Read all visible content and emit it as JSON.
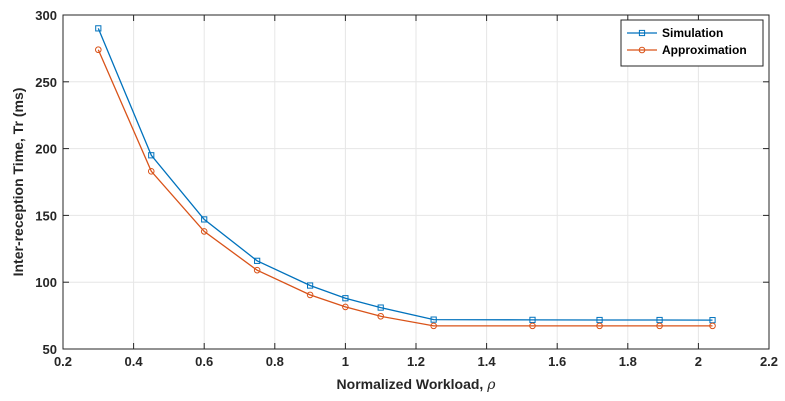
{
  "chart_data": {
    "type": "line",
    "title": "",
    "xlabel": "Normalized Workload, ",
    "xlabel_symbol": "ρ",
    "ylabel": "Inter-reception Time, Tr (ms)",
    "xlim": [
      0.2,
      2.2
    ],
    "ylim": [
      50,
      300
    ],
    "xticks": [
      "0.2",
      "0.4",
      "0.6",
      "0.8",
      "1",
      "1.2",
      "1.4",
      "1.6",
      "1.8",
      "2",
      "2.2"
    ],
    "yticks": [
      "50",
      "100",
      "150",
      "200",
      "250",
      "300"
    ],
    "grid": true,
    "legend_position": "top-right",
    "x": [
      0.3,
      0.45,
      0.6,
      0.75,
      0.9,
      1.0,
      1.1,
      1.25,
      1.53,
      1.72,
      1.89,
      2.04
    ],
    "series": [
      {
        "name": "Simulation",
        "color": "#0072BD",
        "marker": "square",
        "values": [
          290,
          195,
          147,
          116,
          97.5,
          88,
          81,
          72,
          71.8,
          71.7,
          71.7,
          71.6
        ]
      },
      {
        "name": "Approximation",
        "color": "#D95319",
        "marker": "circle",
        "values": [
          274,
          183,
          138,
          109,
          90.5,
          81.5,
          74.5,
          67.3,
          67.3,
          67.3,
          67.3,
          67.3
        ]
      }
    ]
  }
}
